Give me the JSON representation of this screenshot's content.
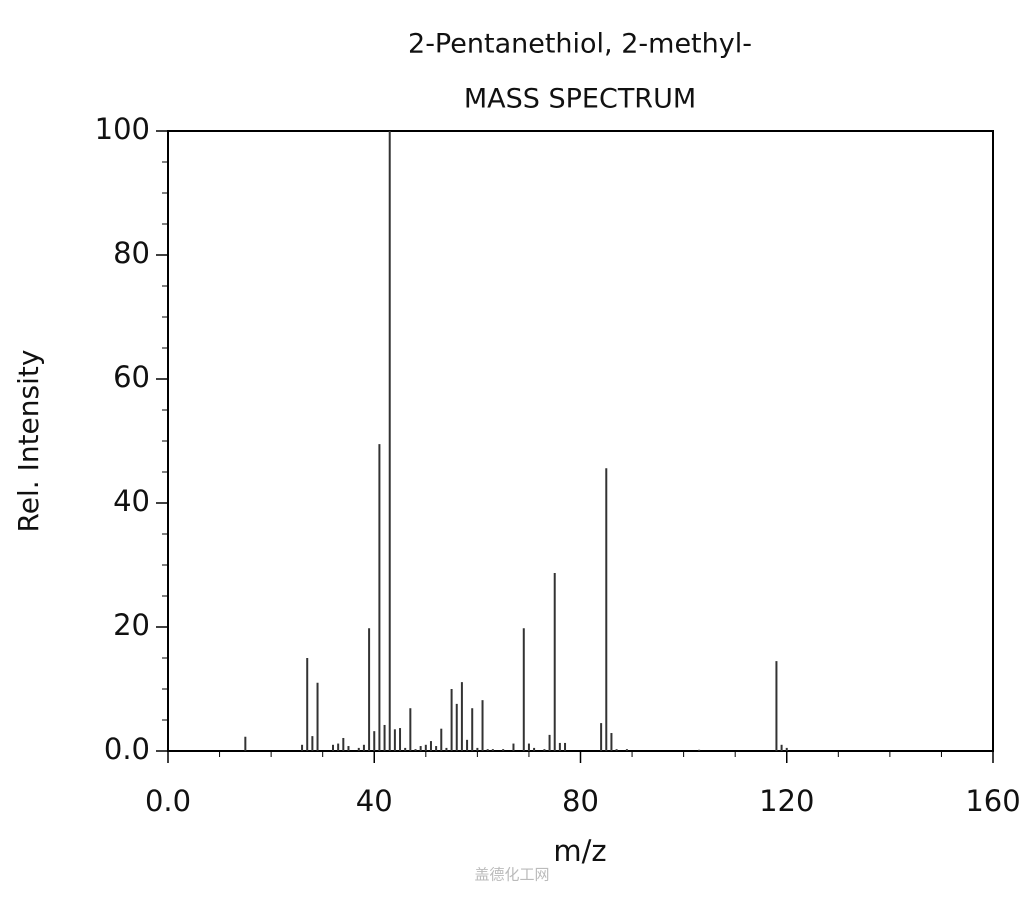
{
  "chart_data": {
    "type": "bar",
    "title": "2-Pentanethiol, 2-methyl-",
    "subtitle": "MASS SPECTRUM",
    "x_label": "m/z",
    "y_label": "Rel. Intensity",
    "watermark": "盖德化工网",
    "color": "#333333",
    "x": [
      15,
      26,
      27,
      28,
      29,
      32,
      33,
      34,
      35,
      37,
      38,
      39,
      40,
      41,
      42,
      43,
      44,
      45,
      46,
      47,
      48,
      49,
      50,
      51,
      52,
      53,
      54,
      55,
      56,
      57,
      58,
      59,
      60,
      61,
      62,
      63,
      65,
      67,
      69,
      70,
      71,
      73,
      74,
      75,
      76,
      77,
      84,
      85,
      86,
      87,
      89,
      103,
      118,
      119,
      120
    ],
    "values": [
      2.3,
      1,
      15,
      2.4,
      11,
      1,
      1.2,
      2.1,
      0.8,
      0.5,
      1,
      19.8,
      3.2,
      49.5,
      4.2,
      100,
      3.5,
      3.7,
      0.5,
      6.9,
      0.3,
      0.8,
      1,
      1.6,
      0.8,
      3.6,
      0.5,
      10,
      7.6,
      11.1,
      1.8,
      6.9,
      0.5,
      8.2,
      0.3,
      0.3,
      0.3,
      1.2,
      19.8,
      1.2,
      0.5,
      0.3,
      2.6,
      28.7,
      1.3,
      1.3,
      4.5,
      45.6,
      2.9,
      0.3,
      0.3,
      0.2,
      14.5,
      1,
      0.5
    ],
    "xlim": [
      0,
      160
    ],
    "xticks": [
      {
        "value": 0,
        "label": "0.0"
      },
      40,
      80,
      120,
      160
    ],
    "x_minor_ticks": [
      10,
      20,
      30,
      50,
      60,
      70,
      90,
      100,
      110,
      130,
      140,
      150
    ],
    "ylim": [
      0,
      100
    ],
    "yticks": [
      {
        "value": 0,
        "label": "0.0"
      },
      20,
      40,
      60,
      80,
      100
    ],
    "y_minor_ticks": [
      5,
      10,
      15,
      25,
      30,
      35,
      45,
      50,
      55,
      65,
      70,
      75,
      85,
      90,
      95
    ]
  }
}
